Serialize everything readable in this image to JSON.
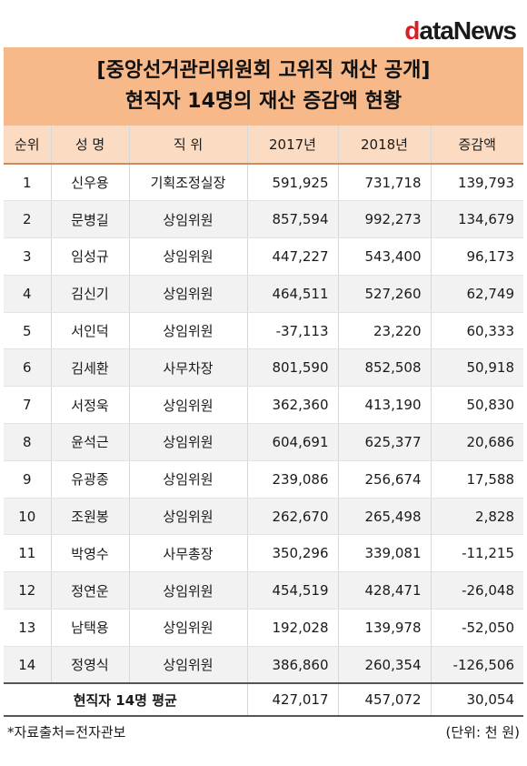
{
  "logo": {
    "first": "d",
    "rest": "ataNews"
  },
  "title": {
    "line1": "[중앙선거관리위원회 고위직 재산 공개]",
    "line2": "현직자 14명의 재산 증감액 현황"
  },
  "table": {
    "headers": [
      "순위",
      "성 명",
      "직 위",
      "2017년",
      "2018년",
      "증감액"
    ],
    "rows": [
      [
        "1",
        "신우용",
        "기획조정실장",
        "591,925",
        "731,718",
        "139,793"
      ],
      [
        "2",
        "문병길",
        "상임위원",
        "857,594",
        "992,273",
        "134,679"
      ],
      [
        "3",
        "임성규",
        "상임위원",
        "447,227",
        "543,400",
        "96,173"
      ],
      [
        "4",
        "김신기",
        "상임위원",
        "464,511",
        "527,260",
        "62,749"
      ],
      [
        "5",
        "서인덕",
        "상임위원",
        "-37,113",
        "23,220",
        "60,333"
      ],
      [
        "6",
        "김세환",
        "사무차장",
        "801,590",
        "852,508",
        "50,918"
      ],
      [
        "7",
        "서정욱",
        "상임위원",
        "362,360",
        "413,190",
        "50,830"
      ],
      [
        "8",
        "윤석근",
        "상임위원",
        "604,691",
        "625,377",
        "20,686"
      ],
      [
        "9",
        "유광종",
        "상임위원",
        "239,086",
        "256,674",
        "17,588"
      ],
      [
        "10",
        "조원봉",
        "상임위원",
        "262,670",
        "265,498",
        "2,828"
      ],
      [
        "11",
        "박영수",
        "사무총장",
        "350,296",
        "339,081",
        "-11,215"
      ],
      [
        "12",
        "정연운",
        "상임위원",
        "454,519",
        "428,471",
        "-26,048"
      ],
      [
        "13",
        "남택용",
        "상임위원",
        "192,028",
        "139,978",
        "-52,050"
      ],
      [
        "14",
        "정영식",
        "상임위원",
        "386,860",
        "260,354",
        "-126,506"
      ]
    ],
    "footer": {
      "label": "현직자 14명 평균",
      "y2017": "427,017",
      "y2018": "457,072",
      "change": "30,054"
    }
  },
  "notes": {
    "source": "*자료출처=전자관보",
    "unit": "(단위: 천 원)"
  }
}
